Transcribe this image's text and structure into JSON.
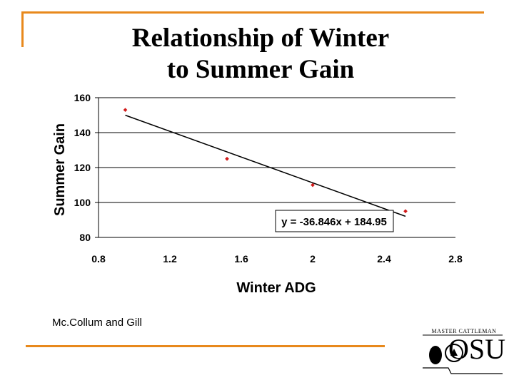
{
  "slide": {
    "title_line1": "Relationship of Winter",
    "title_line2": "to Summer Gain",
    "credit": "Mc.Collum and Gill",
    "logo_caption": "MASTER CATTLEMAN",
    "logo_wordmark": "OSU",
    "accent_color": "#e8891c"
  },
  "chart_data": {
    "type": "scatter",
    "title": "",
    "xlabel": "Winter ADG",
    "ylabel": "Summer Gain",
    "xlim": [
      0.8,
      2.8
    ],
    "ylim": [
      80,
      160
    ],
    "xticks": [
      "0.8",
      "1.2",
      "1.6",
      "2",
      "2.4",
      "2.8"
    ],
    "yticks": [
      "80",
      "100",
      "120",
      "140",
      "160"
    ],
    "grid": "horizontal",
    "marker_color": "#d11a1a",
    "points": [
      {
        "x": 0.95,
        "y": 153
      },
      {
        "x": 1.52,
        "y": 125
      },
      {
        "x": 2.0,
        "y": 110
      },
      {
        "x": 2.52,
        "y": 95
      }
    ],
    "trendline": {
      "slope": -36.846,
      "intercept": 184.95,
      "x_range": [
        0.95,
        2.52
      ],
      "equation_label": "y = -36.846x + 184.95"
    }
  }
}
